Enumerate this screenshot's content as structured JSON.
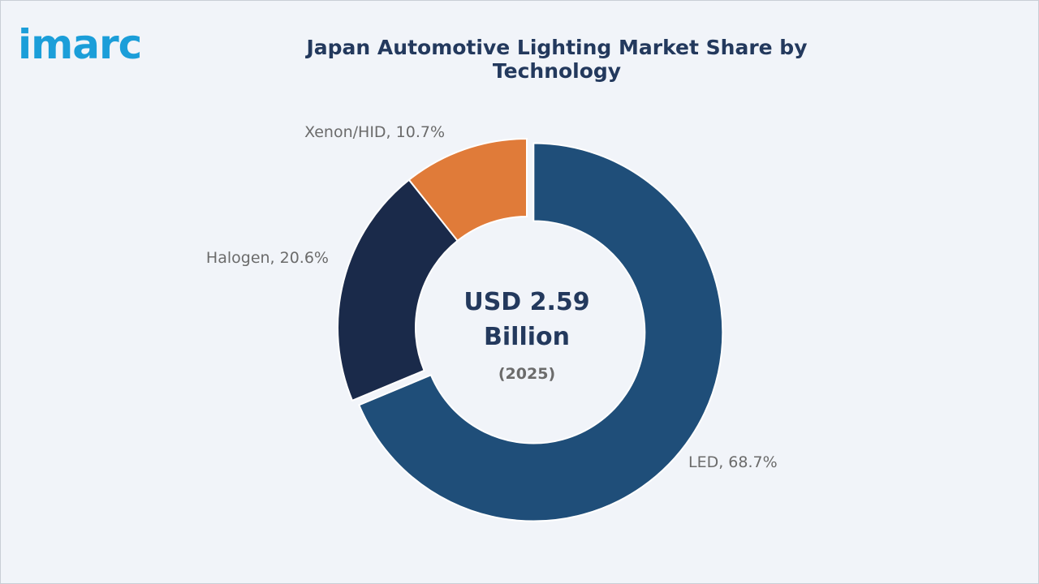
{
  "brand": {
    "logo_text": "imarc"
  },
  "chart_data": {
    "type": "pie",
    "title": "Japan Automotive Lighting Market Share by Technology",
    "center_label": {
      "value_line1": "USD 2.59",
      "value_line2": "Billion",
      "year": "(2025)"
    },
    "slices": [
      {
        "name": "LED",
        "value": 68.7,
        "label": "LED, 68.7%",
        "color": "#1f4e79"
      },
      {
        "name": "Halogen",
        "value": 20.6,
        "label": "Halogen, 20.6%",
        "color": "#1a2a4a"
      },
      {
        "name": "Xenon/HID",
        "value": 10.7,
        "label": "Xenon/HID, 10.7%",
        "color": "#e07b39"
      }
    ]
  }
}
